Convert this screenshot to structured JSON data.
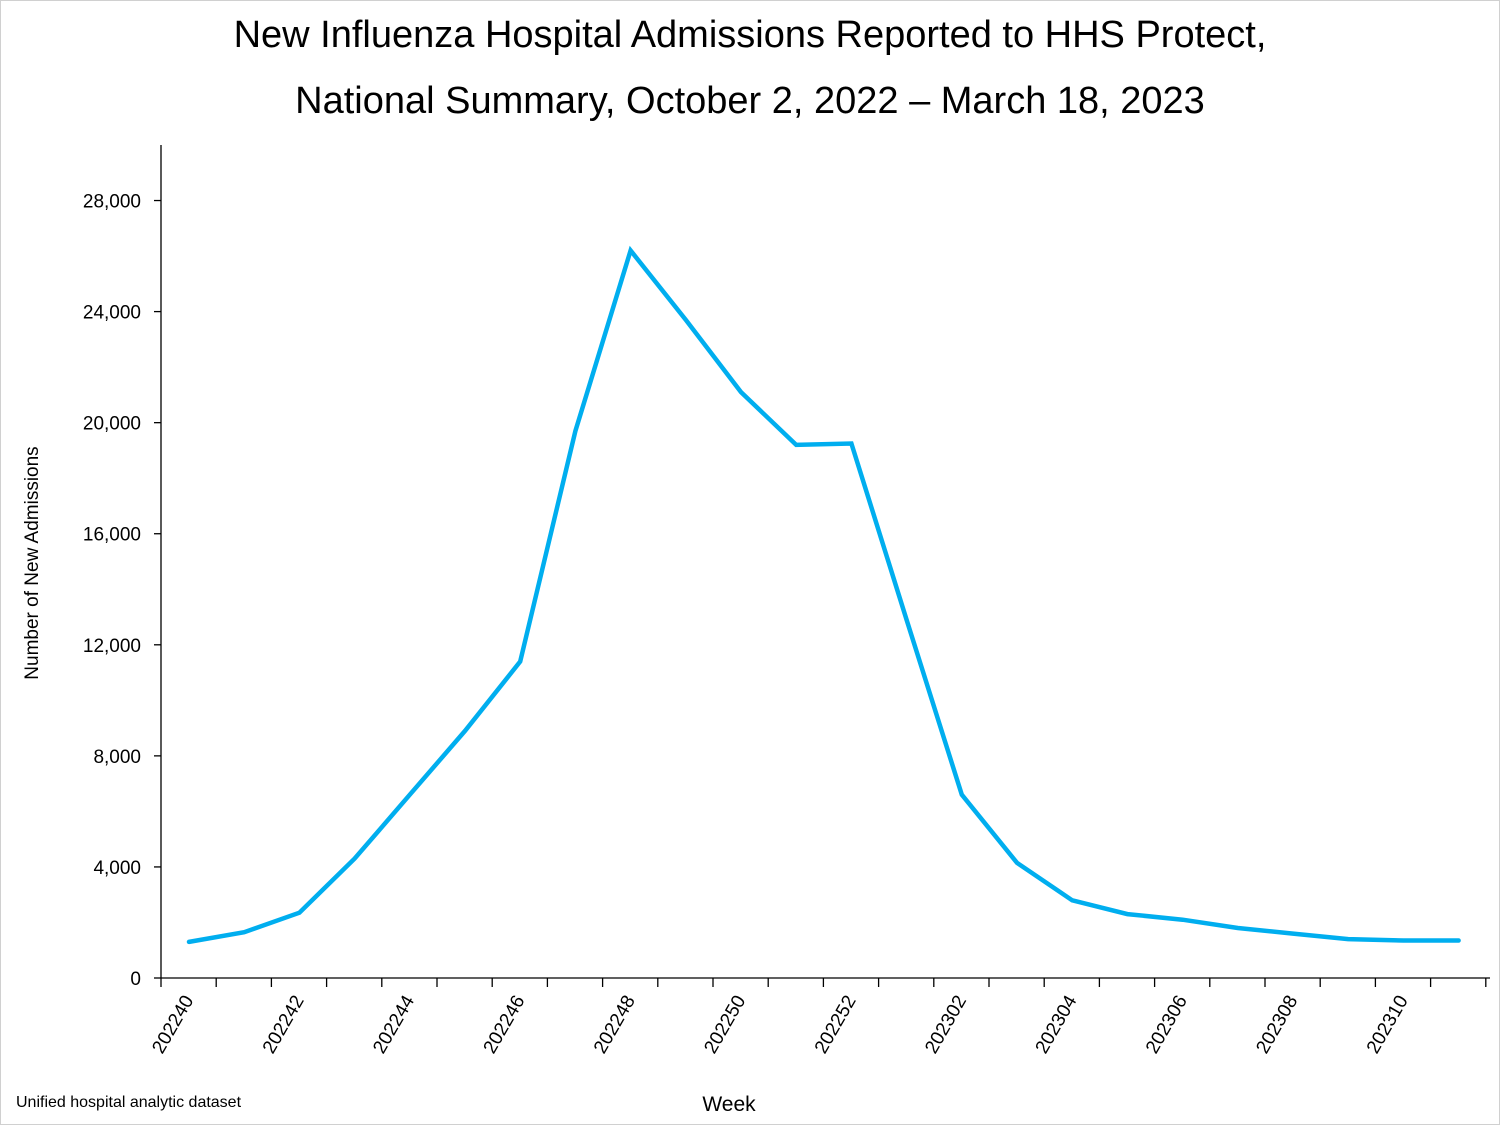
{
  "title_line_1": "New Influenza Hospital Admissions Reported to HHS Protect,",
  "title_line_2": "National Summary, October 2, 2022 – March 18, 2023",
  "source_note": "Unified hospital analytic dataset",
  "chart_data": {
    "type": "line",
    "title": "New Influenza Hospital Admissions Reported to HHS Protect, National Summary, October 2, 2022 – March 18, 2023",
    "xlabel": "Week",
    "ylabel": "Number of New Admissions",
    "ylim": [
      0,
      30000
    ],
    "yticks": [
      0,
      4000,
      8000,
      12000,
      16000,
      20000,
      24000,
      28000
    ],
    "ytick_labels": [
      "0",
      "4,000",
      "8,000",
      "12,000",
      "16,000",
      "20,000",
      "24,000",
      "28,000"
    ],
    "xtick_labels": [
      "202240",
      "202242",
      "202244",
      "202246",
      "202248",
      "202250",
      "202252",
      "202302",
      "202304",
      "202306",
      "202308",
      "202310"
    ],
    "grid": false,
    "line_color": "#00AEEF",
    "x": [
      "202240",
      "202241",
      "202242",
      "202243",
      "202244",
      "202245",
      "202246",
      "202247",
      "202248",
      "202249",
      "202250",
      "202251",
      "202252",
      "202301",
      "202302",
      "202303",
      "202304",
      "202305",
      "202306",
      "202307",
      "202308",
      "202309",
      "202310",
      "202311"
    ],
    "series": [
      {
        "values": [
          1300,
          1650,
          2350,
          4300,
          6600,
          8900,
          11400,
          19700,
          26200,
          23700,
          21100,
          19200,
          19250,
          12900,
          6600,
          4150,
          2800,
          2300,
          2100,
          1800,
          1600,
          1400,
          1350,
          1350
        ]
      }
    ]
  }
}
